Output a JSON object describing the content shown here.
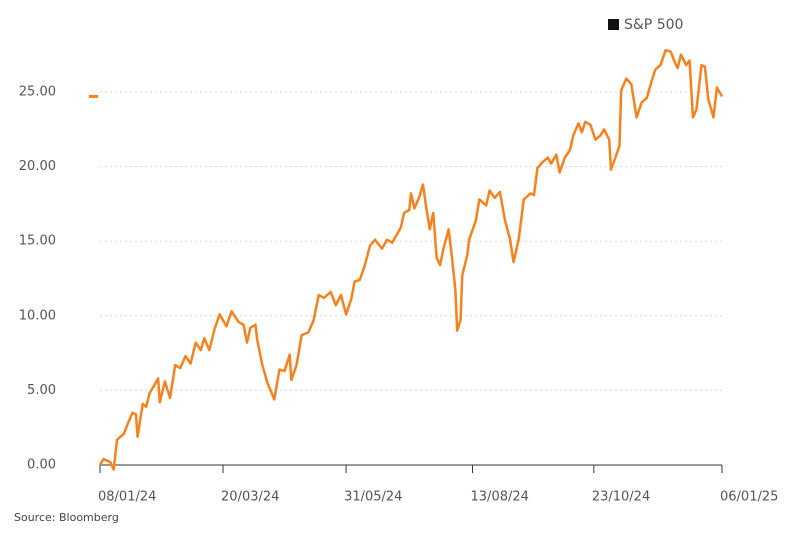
{
  "chart_data": {
    "type": "line",
    "source": "Source: Bloomberg",
    "legend": "top-right",
    "grid": true,
    "x": [
      "08/01/24",
      "10/01/24",
      "12/01/24",
      "14/01/24",
      "16/01/24",
      "18/01/24",
      "22/01/24",
      "24/01/24",
      "27/01/24",
      "29/01/24",
      "30/01/24",
      "02/02/24",
      "04/02/24",
      "06/02/24",
      "09/02/24",
      "11/02/24",
      "12/02/24",
      "15/02/24",
      "18/02/24",
      "21/02/24",
      "24/02/24",
      "27/02/24",
      "01/03/24",
      "04/03/24",
      "07/03/24",
      "09/03/24",
      "12/03/24",
      "15/03/24",
      "18/03/24",
      "22/03/24",
      "25/03/24",
      "29/03/24",
      "01/04/24",
      "03/04/24",
      "05/04/24",
      "08/04/24",
      "09/04/24",
      "12/04/24",
      "15/04/24",
      "19/04/24",
      "22/04/24",
      "25/04/24",
      "28/04/24",
      "29/04/24",
      "02/05/24",
      "05/05/24",
      "09/05/24",
      "12/05/24",
      "15/05/24",
      "18/05/24",
      "22/05/24",
      "25/05/24",
      "28/05/24",
      "31/05/24",
      "03/06/24",
      "05/06/24",
      "08/06/24",
      "11/06/24",
      "14/06/24",
      "17/06/24",
      "21/06/24",
      "24/06/24",
      "27/06/24",
      "02/07/24",
      "04/07/24",
      "07/07/24",
      "08/07/24",
      "10/07/24",
      "13/07/24",
      "15/07/24",
      "17/07/24",
      "19/07/24",
      "21/07/24",
      "23/07/24",
      "25/07/24",
      "27/07/24",
      "30/07/24",
      "01/08/24",
      "03/08/24",
      "04/08/24",
      "06/08/24",
      "07/08/24",
      "10/08/24",
      "11/08/24",
      "15/08/24",
      "17/08/24",
      "21/08/24",
      "23/08/24",
      "26/08/24",
      "29/08/24",
      "01/09/24",
      "04/09/24",
      "06/09/24",
      "09/09/24",
      "12/09/24",
      "16/09/24",
      "18/09/24",
      "20/09/24",
      "23/09/24",
      "26/09/24",
      "28/09/24",
      "01/10/24",
      "03/10/24",
      "06/10/24",
      "09/10/24",
      "11/10/24",
      "14/10/24",
      "16/10/24",
      "18/10/24",
      "21/10/24",
      "24/10/24",
      "27/10/24",
      "29/10/24",
      "01/11/24",
      "02/11/24",
      "04/11/24",
      "07/11/24",
      "08/11/24",
      "11/11/24",
      "14/11/24",
      "17/11/24",
      "20/11/24",
      "23/11/24",
      "26/11/24",
      "28/11/24",
      "01/12/24",
      "04/12/24",
      "07/12/24",
      "09/12/24",
      "11/12/24",
      "13/12/24",
      "16/12/24",
      "18/12/24",
      "20/12/24",
      "22/12/24",
      "25/12/24",
      "27/12/24",
      "29/12/24",
      "01/01/25",
      "03/01/25",
      "06/01/25"
    ],
    "series": [
      {
        "name": "S&P 500",
        "color": "#f5821f",
        "values": [
          0,
          0.4,
          0.3,
          0.2,
          -0.3,
          1.7,
          2.1,
          2.7,
          3.5,
          3.4,
          1.9,
          4.1,
          3.9,
          4.8,
          5.4,
          5.8,
          4.2,
          5.6,
          4.5,
          6.7,
          6.5,
          7.3,
          6.8,
          8.2,
          7.7,
          8.5,
          7.7,
          9.1,
          10.1,
          9.3,
          10.3,
          9.6,
          9.4,
          8.2,
          9.2,
          9.4,
          8.4,
          6.7,
          5.5,
          4.4,
          6.4,
          6.3,
          7.4,
          5.7,
          6.7,
          8.7,
          8.9,
          9.7,
          11.4,
          11.2,
          11.6,
          10.7,
          11.4,
          10.1,
          11.1,
          12.3,
          12.4,
          13.4,
          14.7,
          15.1,
          14.5,
          15.1,
          14.9,
          15.9,
          16.9,
          17.1,
          18.2,
          17.2,
          18.0,
          18.8,
          17.2,
          15.8,
          16.9,
          13.9,
          13.4,
          14.5,
          15.8,
          13.9,
          11.7,
          9.0,
          9.7,
          12.7,
          14.1,
          15.1,
          16.4,
          17.8,
          17.4,
          18.4,
          17.9,
          18.3,
          16.4,
          15.1,
          13.6,
          15.1,
          17.8,
          18.2,
          18.1,
          19.9,
          20.3,
          20.6,
          20.2,
          20.8,
          19.6,
          20.6,
          21.1,
          22.1,
          22.9,
          22.3,
          23.0,
          22.8,
          21.8,
          22.1,
          22.5,
          21.8,
          19.8,
          20.4,
          21.4,
          25.1,
          25.9,
          25.5,
          23.3,
          24.3,
          24.6,
          25.8,
          26.5,
          26.8,
          27.8,
          27.7,
          27.1,
          26.6,
          27.5,
          26.8,
          27.1,
          23.3,
          23.8,
          26.8,
          26.7,
          24.5,
          23.3,
          25.3,
          24.7
        ]
      }
    ],
    "xlim": [
      "08/01/24",
      "06/01/25"
    ],
    "xticks": [
      "08/01/24",
      "20/03/24",
      "31/05/24",
      "13/08/24",
      "23/10/24",
      "06/01/25"
    ],
    "ylim": [
      -0.5,
      28
    ],
    "yticks": [
      {
        "value": 0,
        "label": "0.00"
      },
      {
        "value": 5,
        "label": "5.00"
      },
      {
        "value": 10,
        "label": "10.00"
      },
      {
        "value": 15,
        "label": "15.00"
      },
      {
        "value": 20,
        "label": "20.00"
      },
      {
        "value": 25,
        "label": "25.00"
      }
    ]
  }
}
